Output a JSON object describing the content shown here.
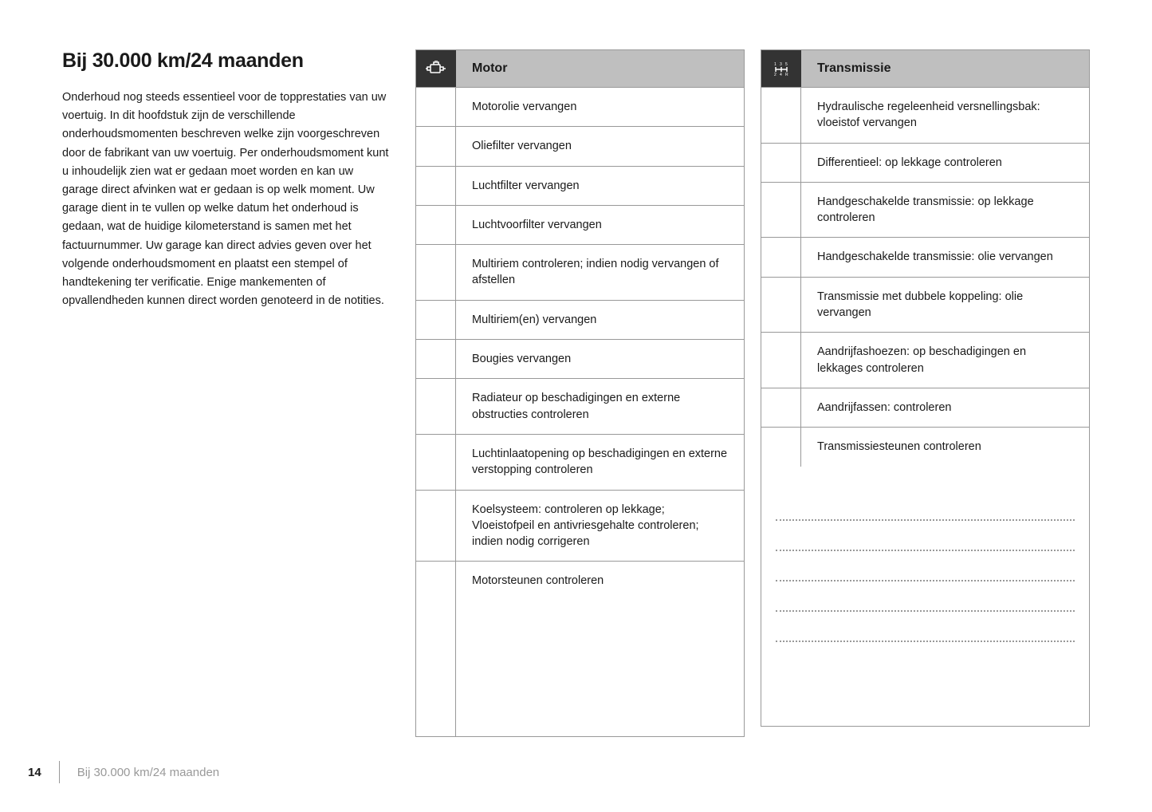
{
  "page": {
    "heading": "Bij 30.000 km/24 maanden",
    "intro": "Onderhoud nog steeds essentieel voor de topprestaties van uw voertuig. In dit hoofdstuk zijn de verschillende onderhoudsmomenten beschreven welke zijn voorgeschreven door de fabrikant van uw voertuig. Per onderhoudsmoment kunt u inhoudelijk zien wat er gedaan moet worden en kan uw garage direct afvinken wat er gedaan is op welk moment. Uw garage dient in te vullen op welke datum het onderhoud is gedaan, wat de huidige kilometerstand is samen met het factuurnummer. Uw garage kan direct advies geven over het volgende onderhoudsmoment en plaatst een stempel of handtekening ter verificatie. Enige mankementen of opvallendheden kunnen direct worden genoteerd in de notities."
  },
  "tables": {
    "motor": {
      "title": "Motor",
      "items": [
        "Motorolie vervangen",
        "Oliefilter vervangen",
        "Luchtfilter vervangen",
        "Luchtvoorfilter vervangen",
        "Multiriem controleren; indien nodig vervangen of afstellen",
        "Multiriem(en) vervangen",
        "Bougies vervangen",
        "Radiateur op beschadigingen en externe obstructies controleren",
        "Luchtinlaatopening op beschadigingen en externe verstopping controleren",
        "Koelsysteem: controleren op lekkage; Vloeistofpeil en antivriesgehalte controleren; indien nodig corrigeren",
        "Motorsteunen controleren"
      ]
    },
    "transmissie": {
      "title": "Transmissie",
      "items": [
        "Hydraulische regeleenheid versnellingsbak: vloeistof vervangen",
        "Differentieel: op lekkage controleren",
        "Handgeschakelde transmissie: op lekkage controleren",
        "Handgeschakelde transmissie: olie vervangen",
        "Transmissie met dubbele koppeling: olie vervangen",
        "Aandrijfashoezen: op beschadigingen en lekkages controleren",
        "Aandrijfassen: controleren",
        "Transmissiesteunen controleren"
      ]
    }
  },
  "footer": {
    "pageNumber": "14",
    "text": "Bij 30.000 km/24 maanden"
  },
  "styling": {
    "headerBg": "#bfbfbf",
    "iconCellBg": "#333333",
    "borderColor": "#999999",
    "textColor": "#1a1a1a",
    "footerTextColor": "#999999",
    "bodyFontSize": 14.5,
    "headingFontSize": 25,
    "notesLineCount": 5
  }
}
